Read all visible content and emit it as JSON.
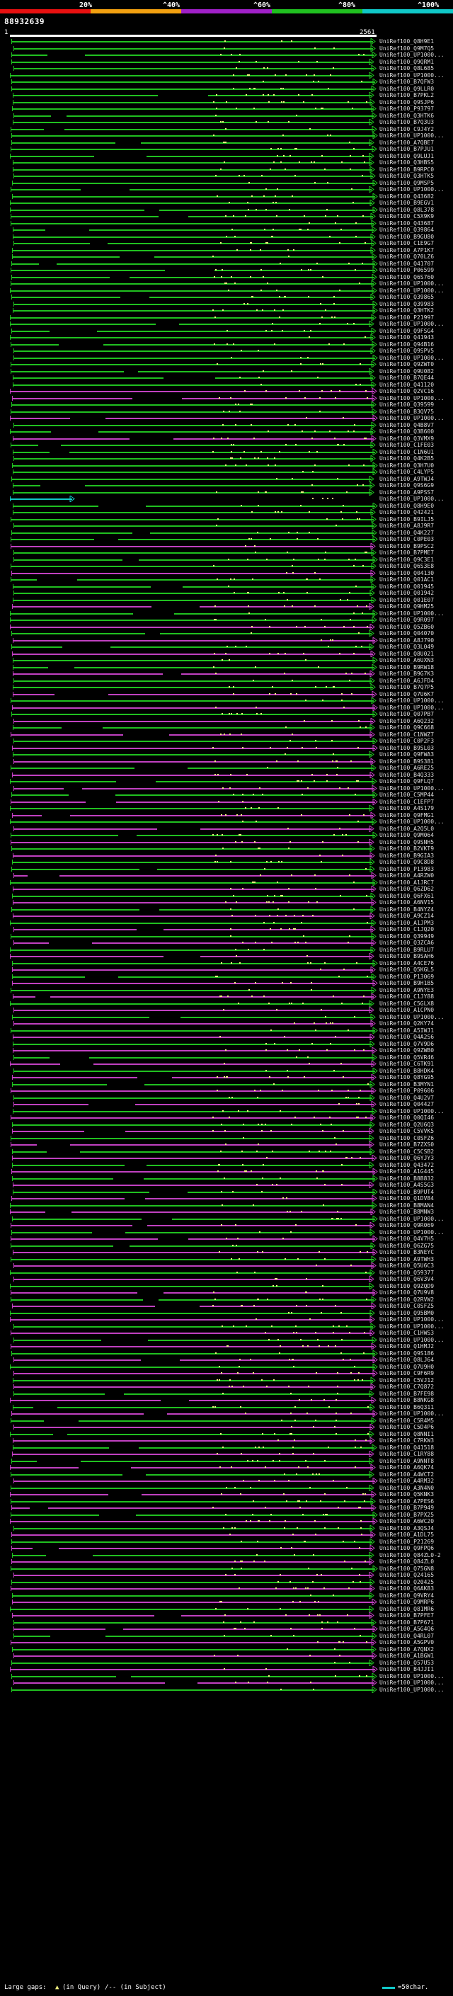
{
  "header": {
    "sequence_id": "88932639",
    "scale_labels": [
      "20%",
      "^40%",
      "^60%",
      "^80%",
      "^100%"
    ],
    "scale_colors": [
      "#e81010",
      "#f2a010",
      "#a020c8",
      "#20c020",
      "#10c8c8"
    ],
    "query_start": "1",
    "query_end": "2561"
  },
  "hits": [
    {
      "label": "UniRef100_Q8H9E1",
      "color": "green"
    },
    {
      "label": "UniRef100_Q9M7Q5",
      "color": "green"
    },
    {
      "label": "UniRef100_UP1000...",
      "color": "green"
    },
    {
      "label": "UniRef100_Q9QRM1",
      "color": "green"
    },
    {
      "label": "UniRef100_Q8L685",
      "color": "green"
    },
    {
      "label": "UniRef100_UP1000...",
      "color": "green"
    },
    {
      "label": "UniRef100_B7QFW3",
      "color": "green"
    },
    {
      "label": "UniRef100_Q9LLR0",
      "color": "green"
    },
    {
      "label": "UniRef100_B7PKL2",
      "color": "green"
    },
    {
      "label": "UniRef100_Q9SJP6",
      "color": "green"
    },
    {
      "label": "UniRef100_P93797",
      "color": "green"
    },
    {
      "label": "UniRef100_Q3HTK6",
      "color": "green"
    },
    {
      "label": "UniRef100_B7Q3U3",
      "color": "green"
    },
    {
      "label": "UniRef100_C9J4Y2",
      "color": "green"
    },
    {
      "label": "UniRef100_UP1000...",
      "color": "green"
    },
    {
      "label": "UniRef100_A7QBE7",
      "color": "green"
    },
    {
      "label": "UniRef100_B7PJU1",
      "color": "green"
    },
    {
      "label": "UniRef100_Q9LUJ1",
      "color": "green"
    },
    {
      "label": "UniRef100_Q3HBS5",
      "color": "green"
    },
    {
      "label": "UniRef100_B9RPC0",
      "color": "green"
    },
    {
      "label": "UniRef100_Q3HTK5",
      "color": "green"
    },
    {
      "label": "UniRef100_Q9MSP5",
      "color": "green"
    },
    {
      "label": "UniRef100_UP1000...",
      "color": "green"
    },
    {
      "label": "UniRef100_Q43682",
      "color": "green"
    },
    {
      "label": "UniRef100_B9EGV1",
      "color": "green"
    },
    {
      "label": "UniRef100_Q8L378",
      "color": "green"
    },
    {
      "label": "UniRef100_C5X9K9",
      "color": "green"
    },
    {
      "label": "UniRef100_Q43687",
      "color": "green"
    },
    {
      "label": "UniRef100_Q39864",
      "color": "green"
    },
    {
      "label": "UniRef100_B9GU80",
      "color": "green"
    },
    {
      "label": "UniRef100_C1E9G7",
      "color": "green"
    },
    {
      "label": "UniRef100_A7P1K7",
      "color": "green"
    },
    {
      "label": "UniRef100_Q70LZ6",
      "color": "green"
    },
    {
      "label": "UniRef100_Q41707",
      "color": "green"
    },
    {
      "label": "UniRef100_P06599",
      "color": "green"
    },
    {
      "label": "UniRef100_Q6S760",
      "color": "green"
    },
    {
      "label": "UniRef100_UP1000...",
      "color": "green"
    },
    {
      "label": "UniRef100_UP1000...",
      "color": "green"
    },
    {
      "label": "UniRef100_Q39865",
      "color": "green"
    },
    {
      "label": "UniRef100_Q39983",
      "color": "green"
    },
    {
      "label": "UniRef100_Q3HTK2",
      "color": "green"
    },
    {
      "label": "UniRef100_P21997",
      "color": "green"
    },
    {
      "label": "UniRef100_UP1000...",
      "color": "green"
    },
    {
      "label": "UniRef100_Q9FSG4",
      "color": "green"
    },
    {
      "label": "UniRef100_Q41943",
      "color": "green"
    },
    {
      "label": "UniRef100_Q94B16",
      "color": "green"
    },
    {
      "label": "UniRef100_Q9SPV5",
      "color": "green"
    },
    {
      "label": "UniRef100_UP1000...",
      "color": "green"
    },
    {
      "label": "UniRef100_Q9ZWT0",
      "color": "green"
    },
    {
      "label": "UniRef100_Q9U082",
      "color": "green"
    },
    {
      "label": "UniRef100_B7QE44",
      "color": "green"
    },
    {
      "label": "UniRef100_Q41120",
      "color": "green"
    },
    {
      "label": "UniRef100_Q2VC16",
      "color": "magenta"
    },
    {
      "label": "UniRef100_UP1000...",
      "color": "magenta"
    },
    {
      "label": "UniRef100_Q39599",
      "color": "green"
    },
    {
      "label": "UniRef100_B3QV75",
      "color": "green"
    },
    {
      "label": "UniRef100_UP1000...",
      "color": "magenta"
    },
    {
      "label": "UniRef100_Q4B8V7",
      "color": "green"
    },
    {
      "label": "UniRef100_Q3B600",
      "color": "green"
    },
    {
      "label": "UniRef100_Q3VMX9",
      "color": "magenta"
    },
    {
      "label": "UniRef100_C1FE03",
      "color": "green"
    },
    {
      "label": "UniRef100_C1N6U1",
      "color": "green"
    },
    {
      "label": "UniRef100_Q4K2B5",
      "color": "green"
    },
    {
      "label": "UniRef100_Q3H7U0",
      "color": "green"
    },
    {
      "label": "UniRef100_C4LYP5",
      "color": "green"
    },
    {
      "label": "UniRef100_A9TWJ4",
      "color": "green"
    },
    {
      "label": "UniRef100_Q9S6G9",
      "color": "green"
    },
    {
      "label": "UniRef100_A9PSS7",
      "color": "green"
    },
    {
      "label": "UniRef100_UP1000...",
      "color": "cyan"
    },
    {
      "label": "UniRef100_Q8H9E0",
      "color": "green"
    },
    {
      "label": "UniRef100_Q42421",
      "color": "green"
    },
    {
      "label": "UniRef100_B9ILJ5",
      "color": "green"
    },
    {
      "label": "UniRef100_A8J9R7",
      "color": "green"
    },
    {
      "label": "UniRef100_Q4K227",
      "color": "green"
    },
    {
      "label": "UniRef100_C0PE03",
      "color": "green"
    },
    {
      "label": "UniRef100_B9PSC2",
      "color": "magenta"
    },
    {
      "label": "UniRef100_B7PME7",
      "color": "green"
    },
    {
      "label": "UniRef100_Q9C3E1",
      "color": "green"
    },
    {
      "label": "UniRef100_Q6S3E8",
      "color": "green"
    },
    {
      "label": "UniRef100_Q04130",
      "color": "magenta"
    },
    {
      "label": "UniRef100_Q01AC1",
      "color": "green"
    },
    {
      "label": "UniRef100_Q01945",
      "color": "green"
    },
    {
      "label": "UniRef100_Q01942",
      "color": "green"
    },
    {
      "label": "UniRef100_Q01E07",
      "color": "green"
    },
    {
      "label": "UniRef100_Q9HM25",
      "color": "magenta"
    },
    {
      "label": "UniRef100_UP1000...",
      "color": "green"
    },
    {
      "label": "UniRef100_Q9R097",
      "color": "green"
    },
    {
      "label": "UniRef100_Q5ZB60",
      "color": "magenta"
    },
    {
      "label": "UniRef100_Q04070",
      "color": "green"
    },
    {
      "label": "UniRef100_A8J790",
      "color": "magenta"
    },
    {
      "label": "UniRef100_Q3L049",
      "color": "green"
    },
    {
      "label": "UniRef100_Q8U021",
      "color": "magenta"
    },
    {
      "label": "UniRef100_A6UXN3",
      "color": "green"
    },
    {
      "label": "UniRef100_B9RW18",
      "color": "green"
    },
    {
      "label": "UniRef100_B9G7K3",
      "color": "magenta"
    },
    {
      "label": "UniRef100_A6JFD4",
      "color": "green"
    },
    {
      "label": "UniRef100_B7Q7P5",
      "color": "green"
    },
    {
      "label": "UniRef100_Q7U6K7",
      "color": "magenta"
    },
    {
      "label": "UniRef100_UP1000...",
      "color": "green"
    },
    {
      "label": "UniRef100_UP1000...",
      "color": "magenta"
    },
    {
      "label": "UniRef100_Q07PB7",
      "color": "green"
    },
    {
      "label": "UniRef100_A6Q232",
      "color": "magenta"
    },
    {
      "label": "UniRef100_Q9C668",
      "color": "green"
    },
    {
      "label": "UniRef100_C1NWZ7",
      "color": "magenta"
    },
    {
      "label": "UniRef100_C0P2F3",
      "color": "green"
    },
    {
      "label": "UniRef100_B9SL03",
      "color": "magenta"
    },
    {
      "label": "UniRef100_Q9FWA3",
      "color": "green"
    },
    {
      "label": "UniRef100_B9S381",
      "color": "magenta"
    },
    {
      "label": "UniRef100_A6RE25",
      "color": "green"
    },
    {
      "label": "UniRef100_B4Q333",
      "color": "magenta"
    },
    {
      "label": "UniRef100_Q9FLQ7",
      "color": "green"
    },
    {
      "label": "UniRef100_UP1000...",
      "color": "magenta"
    },
    {
      "label": "UniRef100_C5MP44",
      "color": "green"
    },
    {
      "label": "UniRef100_C1EFP7",
      "color": "magenta"
    },
    {
      "label": "UniRef100_A4S179",
      "color": "green"
    },
    {
      "label": "UniRef100_Q9FMG1",
      "color": "magenta"
    },
    {
      "label": "UniRef100_UP1000...",
      "color": "green"
    },
    {
      "label": "UniRef100_A2Q5L0",
      "color": "magenta"
    },
    {
      "label": "UniRef100_Q9M064",
      "color": "green"
    },
    {
      "label": "UniRef100_Q9SNH5",
      "color": "magenta"
    },
    {
      "label": "UniRef100_B2VKT9",
      "color": "green"
    },
    {
      "label": "UniRef100_B9GIA3",
      "color": "magenta"
    },
    {
      "label": "UniRef100_Q9C8D8",
      "color": "green"
    },
    {
      "label": "UniRef100_P13983",
      "color": "green"
    },
    {
      "label": "UniRef100_A4RZW0",
      "color": "magenta"
    },
    {
      "label": "UniRef100_A1JRC7",
      "color": "green"
    },
    {
      "label": "UniRef100_Q6ZD62",
      "color": "magenta"
    },
    {
      "label": "UniRef100_Q6FX61",
      "color": "green"
    },
    {
      "label": "UniRef100_A6NV15",
      "color": "magenta"
    },
    {
      "label": "UniRef100_B4NYZ4",
      "color": "green"
    },
    {
      "label": "UniRef100_A9CZ14",
      "color": "magenta"
    },
    {
      "label": "UniRef100_A1JPM3",
      "color": "green"
    },
    {
      "label": "UniRef100_C1JQ20",
      "color": "magenta"
    },
    {
      "label": "UniRef100_Q39949",
      "color": "green"
    },
    {
      "label": "UniRef100_Q3ZCA6",
      "color": "magenta"
    },
    {
      "label": "UniRef100_B9RLU7",
      "color": "green"
    },
    {
      "label": "UniRef100_B9SAH6",
      "color": "magenta"
    },
    {
      "label": "UniRef100_A4CE76",
      "color": "green"
    },
    {
      "label": "UniRef100_Q5KGL5",
      "color": "magenta"
    },
    {
      "label": "UniRef100_P13069",
      "color": "green"
    },
    {
      "label": "UniRef100_B9H1B5",
      "color": "magenta"
    },
    {
      "label": "UniRef100_A9NYE3",
      "color": "green"
    },
    {
      "label": "UniRef100_C1JY88",
      "color": "magenta"
    },
    {
      "label": "UniRef100_C5GLX8",
      "color": "green"
    },
    {
      "label": "UniRef100_A1CPN0",
      "color": "magenta"
    },
    {
      "label": "UniRef100_UP1000...",
      "color": "green"
    },
    {
      "label": "UniRef100_Q2KY74",
      "color": "magenta"
    },
    {
      "label": "UniRef100_A5IWJ1",
      "color": "green"
    },
    {
      "label": "UniRef100_Q4A2S6",
      "color": "magenta"
    },
    {
      "label": "UniRef100_Q7V9D6",
      "color": "green"
    },
    {
      "label": "UniRef100_Q9ZWB0",
      "color": "magenta"
    },
    {
      "label": "UniRef100_Q5VR46",
      "color": "green"
    },
    {
      "label": "UniRef100_C6TK91",
      "color": "magenta"
    },
    {
      "label": "UniRef100_B8HDK4",
      "color": "green"
    },
    {
      "label": "UniRef100_Q8YG95",
      "color": "magenta"
    },
    {
      "label": "UniRef100_B3MYN1",
      "color": "green"
    },
    {
      "label": "UniRef100_P09606",
      "color": "magenta"
    },
    {
      "label": "UniRef100_Q4U2V7",
      "color": "green"
    },
    {
      "label": "UniRef100_Q04427",
      "color": "magenta"
    },
    {
      "label": "UniRef100_UP1000...",
      "color": "green"
    },
    {
      "label": "UniRef100_Q0QI46",
      "color": "magenta"
    },
    {
      "label": "UniRef100_Q2U6Q3",
      "color": "green"
    },
    {
      "label": "UniRef100_C5VVK5",
      "color": "magenta"
    },
    {
      "label": "UniRef100_C0SFZ6",
      "color": "green"
    },
    {
      "label": "UniRef100_B7ZXS0",
      "color": "magenta"
    },
    {
      "label": "UniRef100_C5CSB2",
      "color": "green"
    },
    {
      "label": "UniRef100_Q6YJY3",
      "color": "magenta"
    },
    {
      "label": "UniRef100_Q43472",
      "color": "green"
    },
    {
      "label": "UniRef100_A1G445",
      "color": "magenta"
    },
    {
      "label": "UniRef100_B8B832",
      "color": "green"
    },
    {
      "label": "UniRef100_A4S5G3",
      "color": "magenta"
    },
    {
      "label": "UniRef100_B9PUT4",
      "color": "green"
    },
    {
      "label": "UniRef100_Q1DV84",
      "color": "magenta"
    },
    {
      "label": "UniRef100_B8MAN4",
      "color": "green"
    },
    {
      "label": "UniRef100_B8MNW3",
      "color": "magenta"
    },
    {
      "label": "UniRef100_UP1000...",
      "color": "green"
    },
    {
      "label": "UniRef100_Q9R069",
      "color": "magenta"
    },
    {
      "label": "UniRef100_UP1000...",
      "color": "green"
    },
    {
      "label": "UniRef100_Q4V7H5",
      "color": "magenta"
    },
    {
      "label": "UniRef100_Q6ZG75",
      "color": "green"
    },
    {
      "label": "UniRef100_B3NEYC",
      "color": "magenta"
    },
    {
      "label": "UniRef100_A9TWH3",
      "color": "green"
    },
    {
      "label": "UniRef100_Q5U6C3",
      "color": "magenta"
    },
    {
      "label": "UniRef100_Q59377",
      "color": "green"
    },
    {
      "label": "UniRef100_Q6V3V4",
      "color": "magenta"
    },
    {
      "label": "UniRef100_Q9ZQD9",
      "color": "green"
    },
    {
      "label": "UniRef100_Q7U9V8",
      "color": "magenta"
    },
    {
      "label": "UniRef100_Q2RVW2",
      "color": "green"
    },
    {
      "label": "UniRef100_C0SFZ5",
      "color": "magenta"
    },
    {
      "label": "UniRef100_Q95BM0",
      "color": "green"
    },
    {
      "label": "UniRef100_UP1000...",
      "color": "magenta"
    },
    {
      "label": "UniRef100_UP1000...",
      "color": "green"
    },
    {
      "label": "UniRef100_C1HWS3",
      "color": "magenta"
    },
    {
      "label": "UniRef100_UP1000...",
      "color": "green"
    },
    {
      "label": "UniRef100_Q1HMJ2",
      "color": "magenta"
    },
    {
      "label": "UniRef100_Q9S186",
      "color": "green"
    },
    {
      "label": "UniRef100_Q8LJ64",
      "color": "magenta"
    },
    {
      "label": "UniRef100_Q7U9H0",
      "color": "green"
    },
    {
      "label": "UniRef100_C9F6R9",
      "color": "magenta"
    },
    {
      "label": "UniRef100_C5VJ12",
      "color": "green"
    },
    {
      "label": "UniRef100_C7Q872",
      "color": "magenta"
    },
    {
      "label": "UniRef100_B7FE98",
      "color": "green"
    },
    {
      "label": "UniRef100_B8NKG8",
      "color": "magenta"
    },
    {
      "label": "UniRef100_B6Q311",
      "color": "green"
    },
    {
      "label": "UniRef100_UP1000...",
      "color": "magenta"
    },
    {
      "label": "UniRef100_C5R4M5",
      "color": "green"
    },
    {
      "label": "UniRef100_C5D4P6",
      "color": "magenta"
    },
    {
      "label": "UniRef100_Q8NNI1",
      "color": "green"
    },
    {
      "label": "UniRef100_C7RKW3",
      "color": "magenta"
    },
    {
      "label": "UniRef100_Q41518",
      "color": "green"
    },
    {
      "label": "UniRef100_C1RY88",
      "color": "magenta"
    },
    {
      "label": "UniRef100_A9NNT8",
      "color": "green"
    },
    {
      "label": "UniRef100_A6QK74",
      "color": "magenta"
    },
    {
      "label": "UniRef100_A4WCT2",
      "color": "green"
    },
    {
      "label": "UniRef100_A4RM32",
      "color": "magenta"
    },
    {
      "label": "UniRef100_A3N4N0",
      "color": "green"
    },
    {
      "label": "UniRef100_Q5KNK3",
      "color": "magenta"
    },
    {
      "label": "UniRef100_A7PES6",
      "color": "green"
    },
    {
      "label": "UniRef100_B7P949",
      "color": "magenta"
    },
    {
      "label": "UniRef100_B7PX25",
      "color": "green"
    },
    {
      "label": "UniRef100_A6WC20",
      "color": "magenta"
    },
    {
      "label": "UniRef100_A3QSJ4",
      "color": "green"
    },
    {
      "label": "UniRef100_A1DL75",
      "color": "magenta"
    },
    {
      "label": "UniRef100_P21269",
      "color": "green"
    },
    {
      "label": "UniRef100_Q9FPQ6",
      "color": "magenta"
    },
    {
      "label": "UniRef100_Q84ZL0-2",
      "color": "green"
    },
    {
      "label": "UniRef100_Q84ZL0",
      "color": "magenta"
    },
    {
      "label": "UniRef100_Q75GN8",
      "color": "green"
    },
    {
      "label": "UniRef100_Q24165",
      "color": "magenta"
    },
    {
      "label": "UniRef100_Q20425",
      "color": "green"
    },
    {
      "label": "UniRef100_Q6AK83",
      "color": "magenta"
    },
    {
      "label": "UniRef100_Q9VRY4",
      "color": "green"
    },
    {
      "label": "UniRef100_Q9MRP6",
      "color": "magenta"
    },
    {
      "label": "UniRef100_Q81MR6",
      "color": "green"
    },
    {
      "label": "UniRef100_B7PFE7",
      "color": "magenta"
    },
    {
      "label": "UniRef100_B7P671",
      "color": "green"
    },
    {
      "label": "UniRef100_A5G4Q6",
      "color": "magenta"
    },
    {
      "label": "UniRef100_Q4RL07",
      "color": "green"
    },
    {
      "label": "UniRef100_A5GPV0",
      "color": "magenta"
    },
    {
      "label": "UniRef100_A7QNX2",
      "color": "green"
    },
    {
      "label": "UniRef100_A1BGW1",
      "color": "magenta"
    },
    {
      "label": "UniRef100_Q57U53",
      "color": "green"
    },
    {
      "label": "UniRef100_B4JJI1",
      "color": "magenta"
    },
    {
      "label": "UniRef100_UP1000...",
      "color": "green"
    },
    {
      "label": "UniRef100_UP1000...",
      "color": "magenta"
    },
    {
      "label": "UniRef100_UP1000...",
      "color": "green"
    }
  ],
  "footer": {
    "large_gaps_label": "Large gaps:",
    "in_query_label": "(in Query)",
    "in_subject_label": "/-- (in Subject)",
    "legend_value": "=50char."
  },
  "colors": {
    "green": "#20c020",
    "magenta": "#c040c0",
    "cyan": "#10c8c8",
    "highlight": "#f0f080",
    "dark": "#1a4d1a"
  }
}
